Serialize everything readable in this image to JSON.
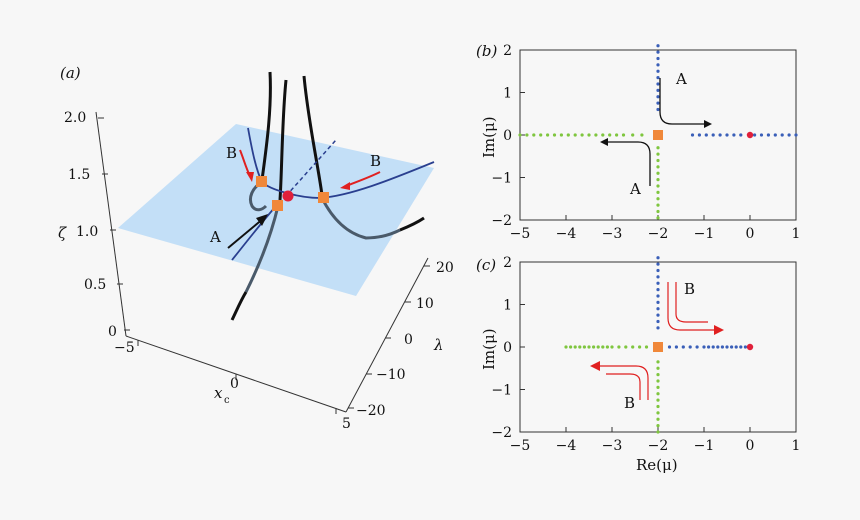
{
  "chart_data": [
    {
      "panel": "(a)",
      "type": "scatter",
      "axes": {
        "x": {
          "label": "x",
          "label_sub": "c",
          "ticks": [
            "−5",
            "0",
            "5"
          ],
          "range": [
            -5,
            5
          ]
        },
        "y": {
          "label": "λ",
          "ticks": [
            "20",
            "10",
            "0",
            "−10",
            "−20"
          ],
          "range": [
            -20,
            20
          ]
        },
        "z": {
          "label": "ζ",
          "ticks": [
            "2.0",
            "1.5",
            "1.0",
            "0.5",
            "0"
          ],
          "range": [
            0,
            2
          ]
        }
      },
      "plane_level": 1.0,
      "annotations": [
        "A",
        "B",
        "B"
      ],
      "colors": {
        "plane": "#bcdcf6",
        "curve": "#111111",
        "section": "#2a3f8f",
        "marker": "#f0883a",
        "point": "#e0203a",
        "arrow_a": "#111111",
        "arrow_b": "#e02020"
      }
    },
    {
      "panel": "(b)",
      "type": "scatter",
      "xlim": [
        -5,
        1
      ],
      "ylim": [
        -2,
        2
      ],
      "xticks": [
        "−5",
        "−4",
        "−3",
        "−2",
        "−1",
        "0",
        "1"
      ],
      "yticks": [
        "2",
        "1",
        "0",
        "−1",
        "−2"
      ],
      "ylabel": "Im(μ)",
      "series": [
        {
          "color": "#7fc63f",
          "points": [
            [
              -5.0,
              0
            ],
            [
              -4.85,
              0
            ],
            [
              -4.7,
              0
            ],
            [
              -4.55,
              0
            ],
            [
              -4.4,
              0
            ],
            [
              -4.25,
              0
            ],
            [
              -4.1,
              0
            ],
            [
              -3.95,
              0
            ],
            [
              -3.8,
              0
            ],
            [
              -3.65,
              0
            ],
            [
              -3.5,
              0
            ],
            [
              -3.35,
              0
            ],
            [
              -3.2,
              0
            ],
            [
              -3.05,
              0
            ],
            [
              -2.9,
              0
            ],
            [
              -2.75,
              0
            ],
            [
              -2.55,
              0
            ],
            [
              -2.35,
              0
            ],
            [
              -2,
              -0.3
            ],
            [
              -2,
              -0.45
            ],
            [
              -2,
              -0.6
            ],
            [
              -2,
              -0.75
            ],
            [
              -2,
              -0.9
            ],
            [
              -2,
              -1.05
            ],
            [
              -2,
              -1.2
            ],
            [
              -2,
              -1.35
            ],
            [
              -2,
              -1.5
            ],
            [
              -2,
              -1.65
            ],
            [
              -2,
              -1.8
            ],
            [
              -2,
              -1.95
            ]
          ]
        },
        {
          "color": "#3a5fb8",
          "points": [
            [
              -1.25,
              0
            ],
            [
              -1.1,
              0
            ],
            [
              -0.95,
              0
            ],
            [
              -0.8,
              0
            ],
            [
              -0.65,
              0
            ],
            [
              -0.5,
              0
            ],
            [
              -0.35,
              0
            ],
            [
              -0.2,
              0
            ],
            [
              0.1,
              0
            ],
            [
              0.25,
              0
            ],
            [
              0.4,
              0
            ],
            [
              0.55,
              0
            ],
            [
              0.7,
              0
            ],
            [
              0.85,
              0
            ],
            [
              1.0,
              0
            ],
            [
              -2,
              0.6
            ],
            [
              -2,
              0.75
            ],
            [
              -2,
              0.9
            ],
            [
              -2,
              1.05
            ],
            [
              -2,
              1.2
            ],
            [
              -2,
              1.35
            ],
            [
              -2,
              1.5
            ],
            [
              -2,
              1.65
            ],
            [
              -2,
              1.8
            ],
            [
              -2,
              1.95
            ],
            [
              -2,
              2.1
            ]
          ]
        },
        {
          "color": "#e0203a",
          "points": [
            [
              0,
              0
            ]
          ]
        },
        {
          "color": "#f0883a",
          "points": [
            [
              -2,
              0
            ]
          ],
          "marker": "square"
        }
      ],
      "annotations": [
        "A",
        "A"
      ]
    },
    {
      "panel": "(c)",
      "type": "scatter",
      "xlim": [
        -5,
        1
      ],
      "ylim": [
        -2,
        2
      ],
      "xticks": [
        "−5",
        "−4",
        "−3",
        "−2",
        "−1",
        "0",
        "1"
      ],
      "yticks": [
        "2",
        "1",
        "0",
        "−1",
        "−2"
      ],
      "xlabel": "Re(μ)",
      "ylabel": "Im(μ)",
      "series": [
        {
          "color": "#7fc63f",
          "points": [
            [
              -4.0,
              0
            ],
            [
              -3.9,
              0
            ],
            [
              -3.8,
              0
            ],
            [
              -3.7,
              0
            ],
            [
              -3.6,
              0
            ],
            [
              -3.5,
              0
            ],
            [
              -3.4,
              0
            ],
            [
              -3.3,
              0
            ],
            [
              -3.2,
              0
            ],
            [
              -3.1,
              0
            ],
            [
              -3.0,
              0
            ],
            [
              -2.85,
              0
            ],
            [
              -2.7,
              0
            ],
            [
              -2.55,
              0
            ],
            [
              -2.4,
              0
            ],
            [
              -2.25,
              0
            ],
            [
              -2,
              -0.35
            ],
            [
              -2,
              -0.5
            ],
            [
              -2,
              -0.65
            ],
            [
              -2,
              -0.8
            ],
            [
              -2,
              -0.95
            ],
            [
              -2,
              -1.1
            ],
            [
              -2,
              -1.25
            ],
            [
              -2,
              -1.4
            ],
            [
              -2,
              -1.55
            ],
            [
              -2,
              -1.7
            ],
            [
              -2,
              -1.85
            ],
            [
              -2,
              -2.0
            ]
          ]
        },
        {
          "color": "#3a5fb8",
          "points": [
            [
              -1.75,
              0
            ],
            [
              -1.6,
              0
            ],
            [
              -1.45,
              0
            ],
            [
              -1.3,
              0
            ],
            [
              -1.15,
              0
            ],
            [
              -1.0,
              0
            ],
            [
              -0.9,
              0
            ],
            [
              -0.8,
              0
            ],
            [
              -0.7,
              0
            ],
            [
              -0.6,
              0
            ],
            [
              -0.5,
              0
            ],
            [
              -0.4,
              0
            ],
            [
              -0.3,
              0
            ],
            [
              -0.2,
              0
            ],
            [
              -0.1,
              0
            ],
            [
              -2,
              0.45
            ],
            [
              -2,
              0.6
            ],
            [
              -2,
              0.75
            ],
            [
              -2,
              0.9
            ],
            [
              -2,
              1.05
            ],
            [
              -2,
              1.2
            ],
            [
              -2,
              1.35
            ],
            [
              -2,
              1.5
            ],
            [
              -2,
              1.65
            ],
            [
              -2,
              1.8
            ],
            [
              -2,
              1.95
            ],
            [
              -2,
              2.1
            ]
          ]
        },
        {
          "color": "#e0203a",
          "points": [
            [
              0,
              0
            ]
          ]
        },
        {
          "color": "#f0883a",
          "points": [
            [
              -2,
              0
            ]
          ],
          "marker": "square"
        }
      ],
      "annotations": [
        "B",
        "B"
      ]
    }
  ]
}
